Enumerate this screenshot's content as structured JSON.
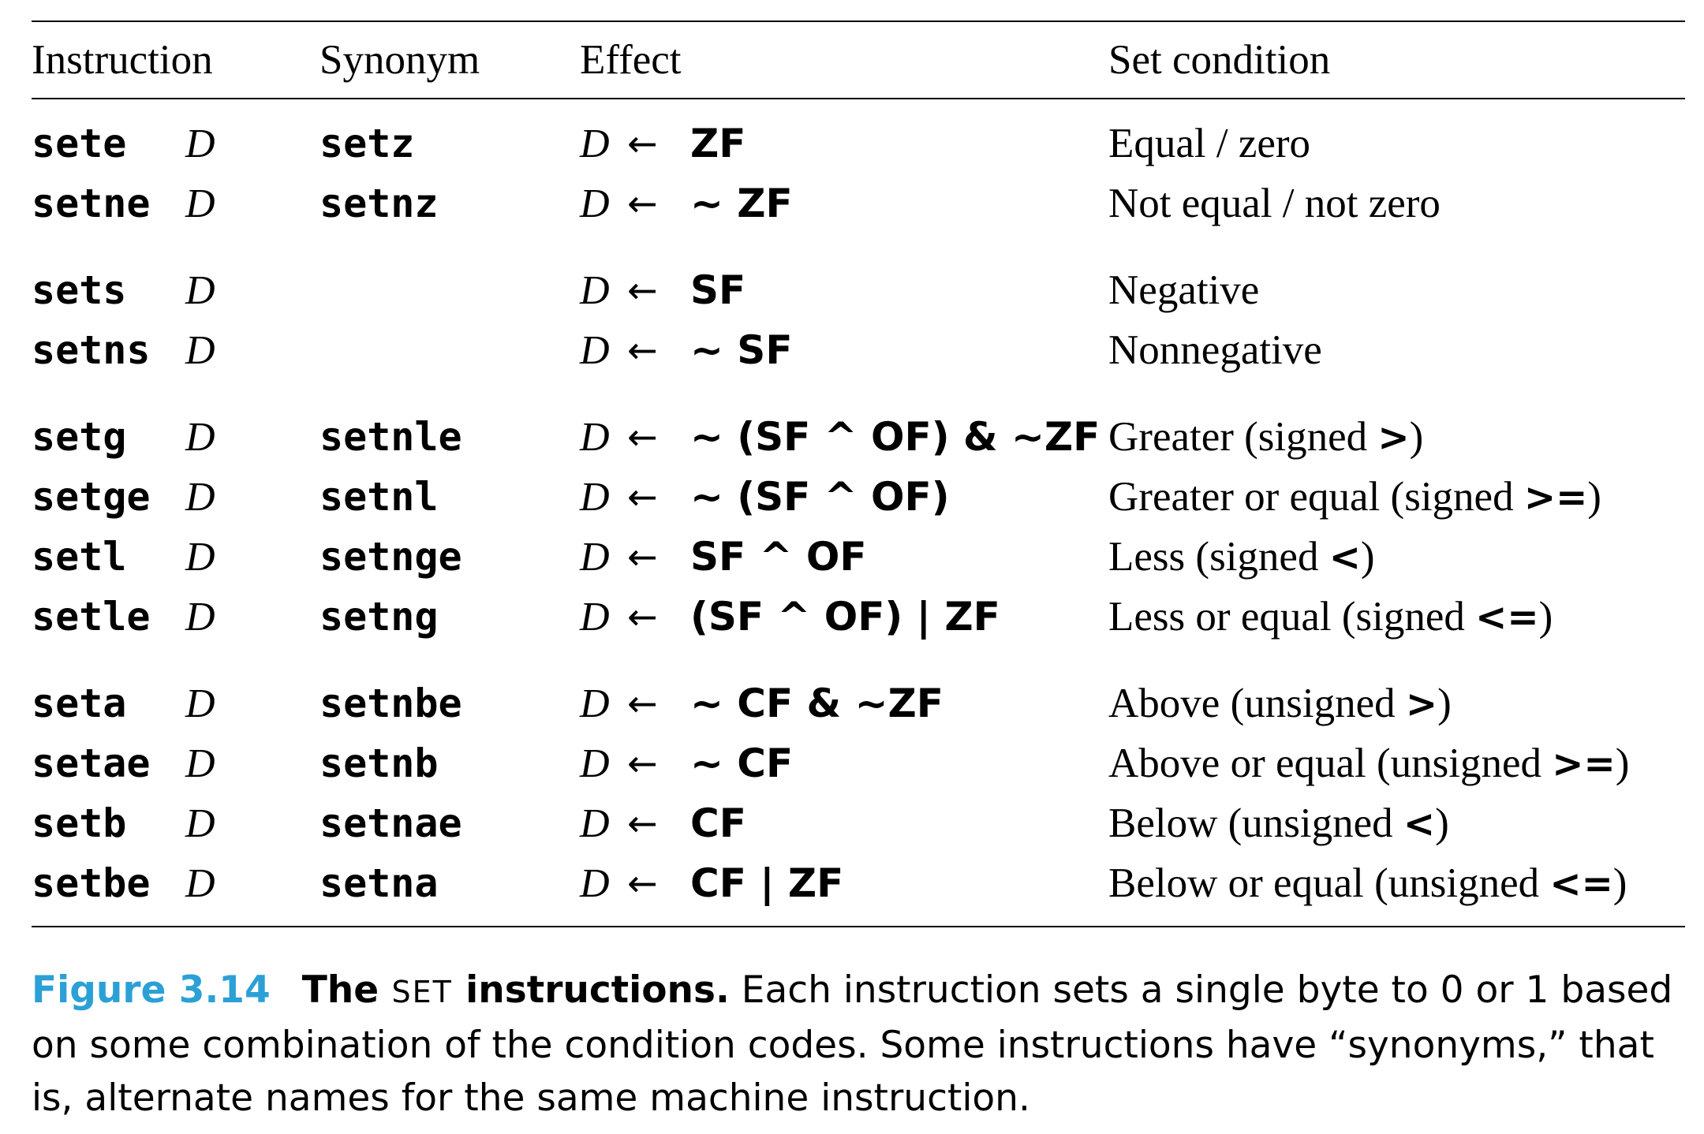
{
  "table": {
    "headers": {
      "instruction": "Instruction",
      "synonym": "Synonym",
      "effect": "Effect",
      "set_condition": "Set condition"
    },
    "groups": [
      [
        {
          "instr": "sete",
          "dest": "D",
          "synonym": "setz",
          "arrow": "←",
          "expr": "ZF",
          "cond": "Equal / zero",
          "op": ""
        },
        {
          "instr": "setne",
          "dest": "D",
          "synonym": "setnz",
          "arrow": "←",
          "expr": "~ ZF",
          "cond": "Not equal / not zero",
          "op": ""
        }
      ],
      [
        {
          "instr": "sets",
          "dest": "D",
          "synonym": "",
          "arrow": "←",
          "expr": "SF",
          "cond": "Negative",
          "op": ""
        },
        {
          "instr": "setns",
          "dest": "D",
          "synonym": "",
          "arrow": "←",
          "expr": "~ SF",
          "cond": "Nonnegative",
          "op": ""
        }
      ],
      [
        {
          "instr": "setg",
          "dest": "D",
          "synonym": "setnle",
          "arrow": "←",
          "expr": "~ (SF ^ OF) & ~ZF",
          "cond": "Greater (signed ",
          "op": ">",
          "close": ")"
        },
        {
          "instr": "setge",
          "dest": "D",
          "synonym": "setnl",
          "arrow": "←",
          "expr": "~ (SF ^ OF)",
          "cond": "Greater or equal (signed ",
          "op": ">=",
          "close": ")"
        },
        {
          "instr": "setl",
          "dest": "D",
          "synonym": "setnge",
          "arrow": "←",
          "expr": "SF ^ OF",
          "cond": "Less (signed ",
          "op": "<",
          "close": ")"
        },
        {
          "instr": "setle",
          "dest": "D",
          "synonym": "setng",
          "arrow": "←",
          "expr": "(SF ^ OF) | ZF",
          "cond": "Less or equal (signed ",
          "op": "<=",
          "close": ")"
        }
      ],
      [
        {
          "instr": "seta",
          "dest": "D",
          "synonym": "setnbe",
          "arrow": "←",
          "expr": "~ CF & ~ZF",
          "cond": "Above (unsigned ",
          "op": ">",
          "close": ")"
        },
        {
          "instr": "setae",
          "dest": "D",
          "synonym": "setnb",
          "arrow": "←",
          "expr": "~ CF",
          "cond": "Above or equal (unsigned ",
          "op": ">=",
          "close": ")"
        },
        {
          "instr": "setb",
          "dest": "D",
          "synonym": "setnae",
          "arrow": "←",
          "expr": "CF",
          "cond": "Below (unsigned ",
          "op": "<",
          "close": ")"
        },
        {
          "instr": "setbe",
          "dest": "D",
          "synonym": "setna",
          "arrow": "←",
          "expr": "CF | ZF",
          "cond": "Below or equal (unsigned ",
          "op": "<=",
          "close": ")"
        }
      ]
    ]
  },
  "caption": {
    "figure_number": "Figure 3.14",
    "title_a": "The ",
    "title_smallcaps": "SET",
    "title_b": " instructions.",
    "text": " Each instruction sets a single byte to 0 or 1 based on some combination of the condition codes. Some instructions have “synonyms,” that is, alternate names for the same machine instruction."
  },
  "colors": {
    "figure_number": "#2ba0d6",
    "text": "#000000"
  }
}
